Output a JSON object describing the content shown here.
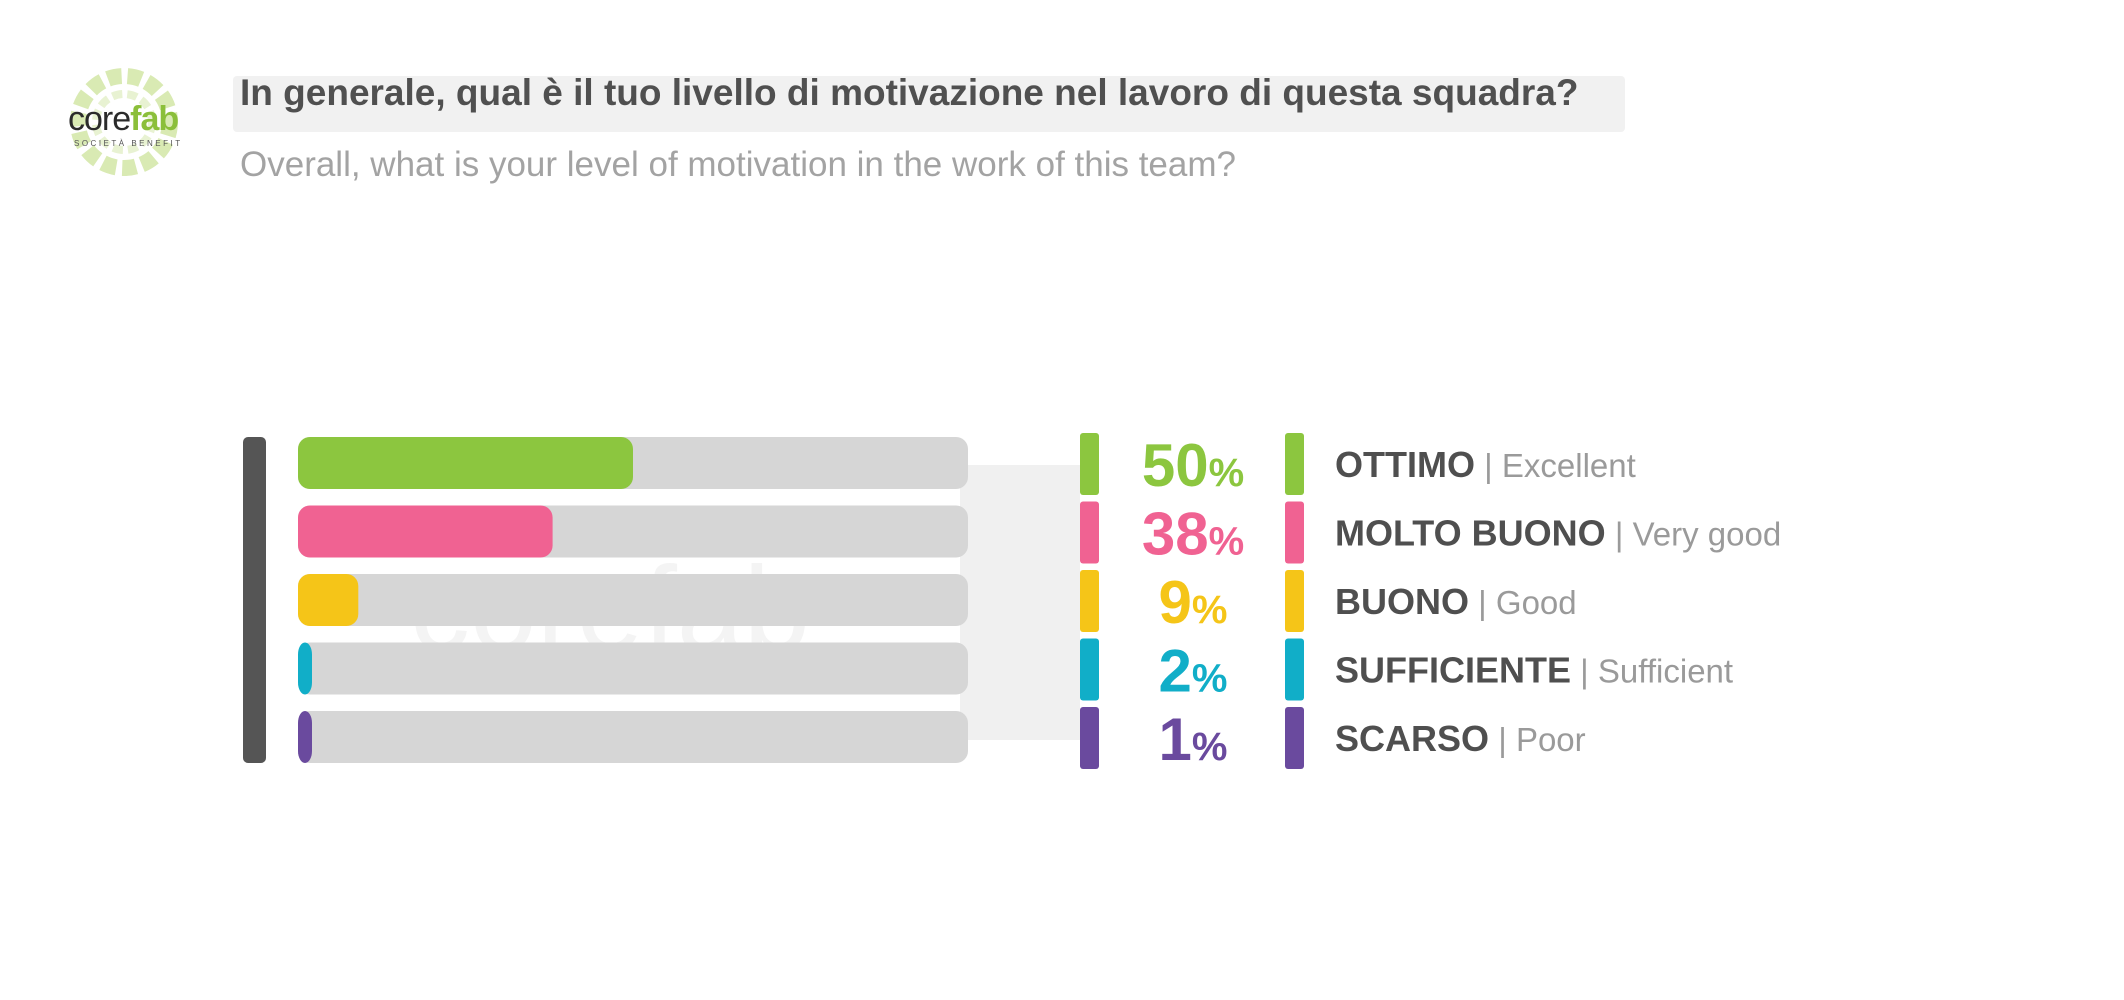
{
  "logo": {
    "core": "core",
    "fab": "fab",
    "subtitle": "SOCIETÀ BENEFIT",
    "colors": {
      "core": "#2b2b2b",
      "fab": "#8bbf3a"
    }
  },
  "header": {
    "title": "In generale, qual è il tuo livello di motivazione nel lavoro di questa squadra?",
    "subtitle": "Overall, what is your level of motivation in the work of this team?"
  },
  "chart_data": {
    "type": "bar",
    "orientation": "horizontal",
    "categories": [
      "OTTIMO",
      "MOLTO BUONO",
      "BUONO",
      "SUFFICIENTE",
      "SCARSO"
    ],
    "categories_en": [
      "Excellent",
      "Very good",
      "Good",
      "Sufficient",
      "Poor"
    ],
    "values": [
      50,
      38,
      9,
      2,
      1
    ],
    "value_suffix": "%",
    "xlim": [
      0,
      100
    ],
    "colors": [
      "#8cc63f",
      "#f06292",
      "#f5c518",
      "#11aec8",
      "#6a4a9e"
    ],
    "track_color": "#d6d6d6",
    "axis_color": "#555555",
    "label_separator": "|"
  }
}
